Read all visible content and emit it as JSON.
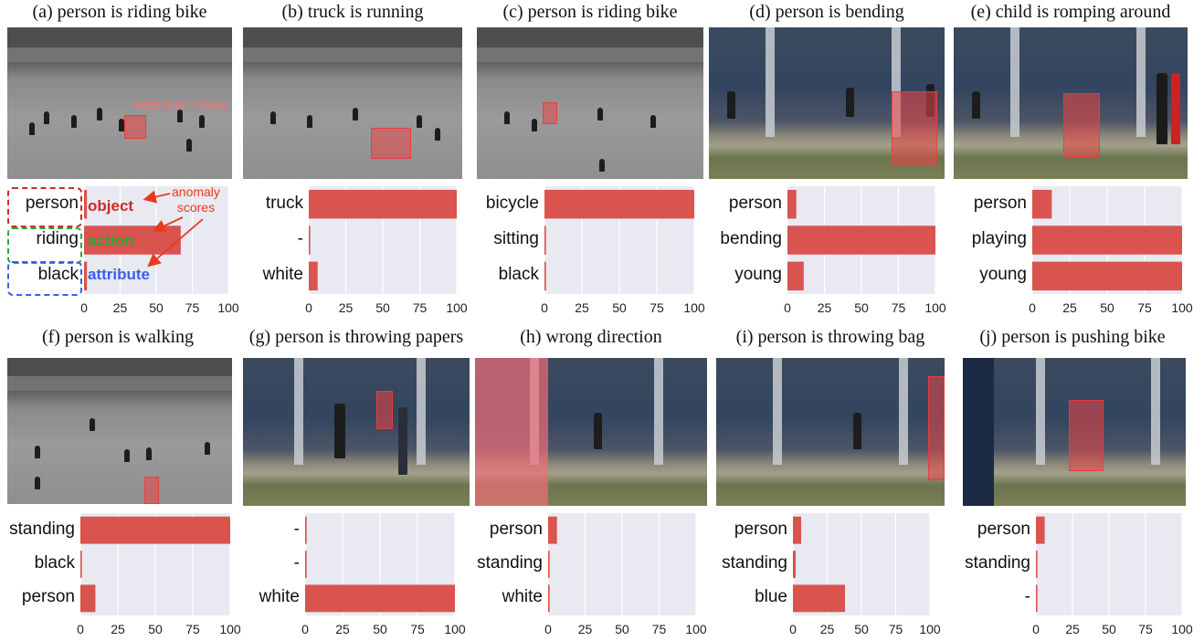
{
  "legend": {
    "object_word": "object",
    "action_word": "action",
    "attribute_word": "attribute",
    "anomaly_note": "anomaly\nscores",
    "detection_note": "detection result",
    "colors": {
      "object": "#d02828",
      "action": "#28a838",
      "attribute": "#3a5ee8",
      "arrow": "#e83a1f",
      "bar": "#d9534f",
      "plot_bg": "#e9e9f2"
    }
  },
  "chart_data": [
    {
      "type": "bar",
      "orientation": "horizontal",
      "caption": "(a) person is riding bike",
      "categories": [
        "person",
        "riding",
        "black"
      ],
      "values": [
        2,
        67,
        2
      ],
      "xlim": [
        0,
        100
      ],
      "xticks": [
        "0",
        "25",
        "50",
        "75",
        "100"
      ]
    },
    {
      "type": "bar",
      "orientation": "horizontal",
      "caption": "(b) truck is running",
      "categories": [
        "truck",
        "-",
        "white"
      ],
      "values": [
        100,
        1,
        6
      ],
      "xlim": [
        0,
        100
      ],
      "xticks": [
        "0",
        "25",
        "50",
        "75",
        "100"
      ]
    },
    {
      "type": "bar",
      "orientation": "horizontal",
      "caption": "(c) person is riding bike",
      "categories": [
        "bicycle",
        "sitting",
        "black"
      ],
      "values": [
        100,
        1,
        1
      ],
      "xlim": [
        0,
        100
      ],
      "xticks": [
        "0",
        "25",
        "50",
        "75",
        "100"
      ]
    },
    {
      "type": "bar",
      "orientation": "horizontal",
      "caption": "(d) person is bending",
      "categories": [
        "person",
        "bending",
        "young"
      ],
      "values": [
        6,
        100,
        11
      ],
      "xlim": [
        0,
        100
      ],
      "xticks": [
        "0",
        "25",
        "50",
        "75",
        "100"
      ]
    },
    {
      "type": "bar",
      "orientation": "horizontal",
      "caption": "(e) child is romping around",
      "categories": [
        "person",
        "playing",
        "young"
      ],
      "values": [
        13,
        100,
        100
      ],
      "xlim": [
        0,
        100
      ],
      "xticks": [
        "0",
        "25",
        "50",
        "75",
        "100"
      ]
    },
    {
      "type": "bar",
      "orientation": "horizontal",
      "caption": "(f) person is walking",
      "categories": [
        "standing",
        "black",
        "person"
      ],
      "values": [
        100,
        1,
        10
      ],
      "xlim": [
        0,
        100
      ],
      "xticks": [
        "0",
        "25",
        "50",
        "75",
        "100"
      ]
    },
    {
      "type": "bar",
      "orientation": "horizontal",
      "caption": "(g) person is throwing papers",
      "categories": [
        "-",
        "-",
        "white"
      ],
      "values": [
        1,
        1,
        100
      ],
      "xlim": [
        0,
        100
      ],
      "xticks": [
        "0",
        "25",
        "50",
        "75",
        "100"
      ]
    },
    {
      "type": "bar",
      "orientation": "horizontal",
      "caption": "(h) wrong direction",
      "categories": [
        "person",
        "standing",
        "white"
      ],
      "values": [
        6,
        1,
        1
      ],
      "xlim": [
        0,
        100
      ],
      "xticks": [
        "0",
        "25",
        "50",
        "75",
        "100"
      ]
    },
    {
      "type": "bar",
      "orientation": "horizontal",
      "caption": "(i) person is throwing bag",
      "categories": [
        "person",
        "standing",
        "blue"
      ],
      "values": [
        6,
        2,
        38
      ],
      "xlim": [
        0,
        100
      ],
      "xticks": [
        "0",
        "25",
        "50",
        "75",
        "100"
      ]
    },
    {
      "type": "bar",
      "orientation": "horizontal",
      "caption": "(j) person is pushing bike",
      "categories": [
        "person",
        "standing",
        "-"
      ],
      "values": [
        6,
        1,
        1
      ],
      "xlim": [
        0,
        100
      ],
      "xticks": [
        "0",
        "25",
        "50",
        "75",
        "100"
      ]
    }
  ]
}
